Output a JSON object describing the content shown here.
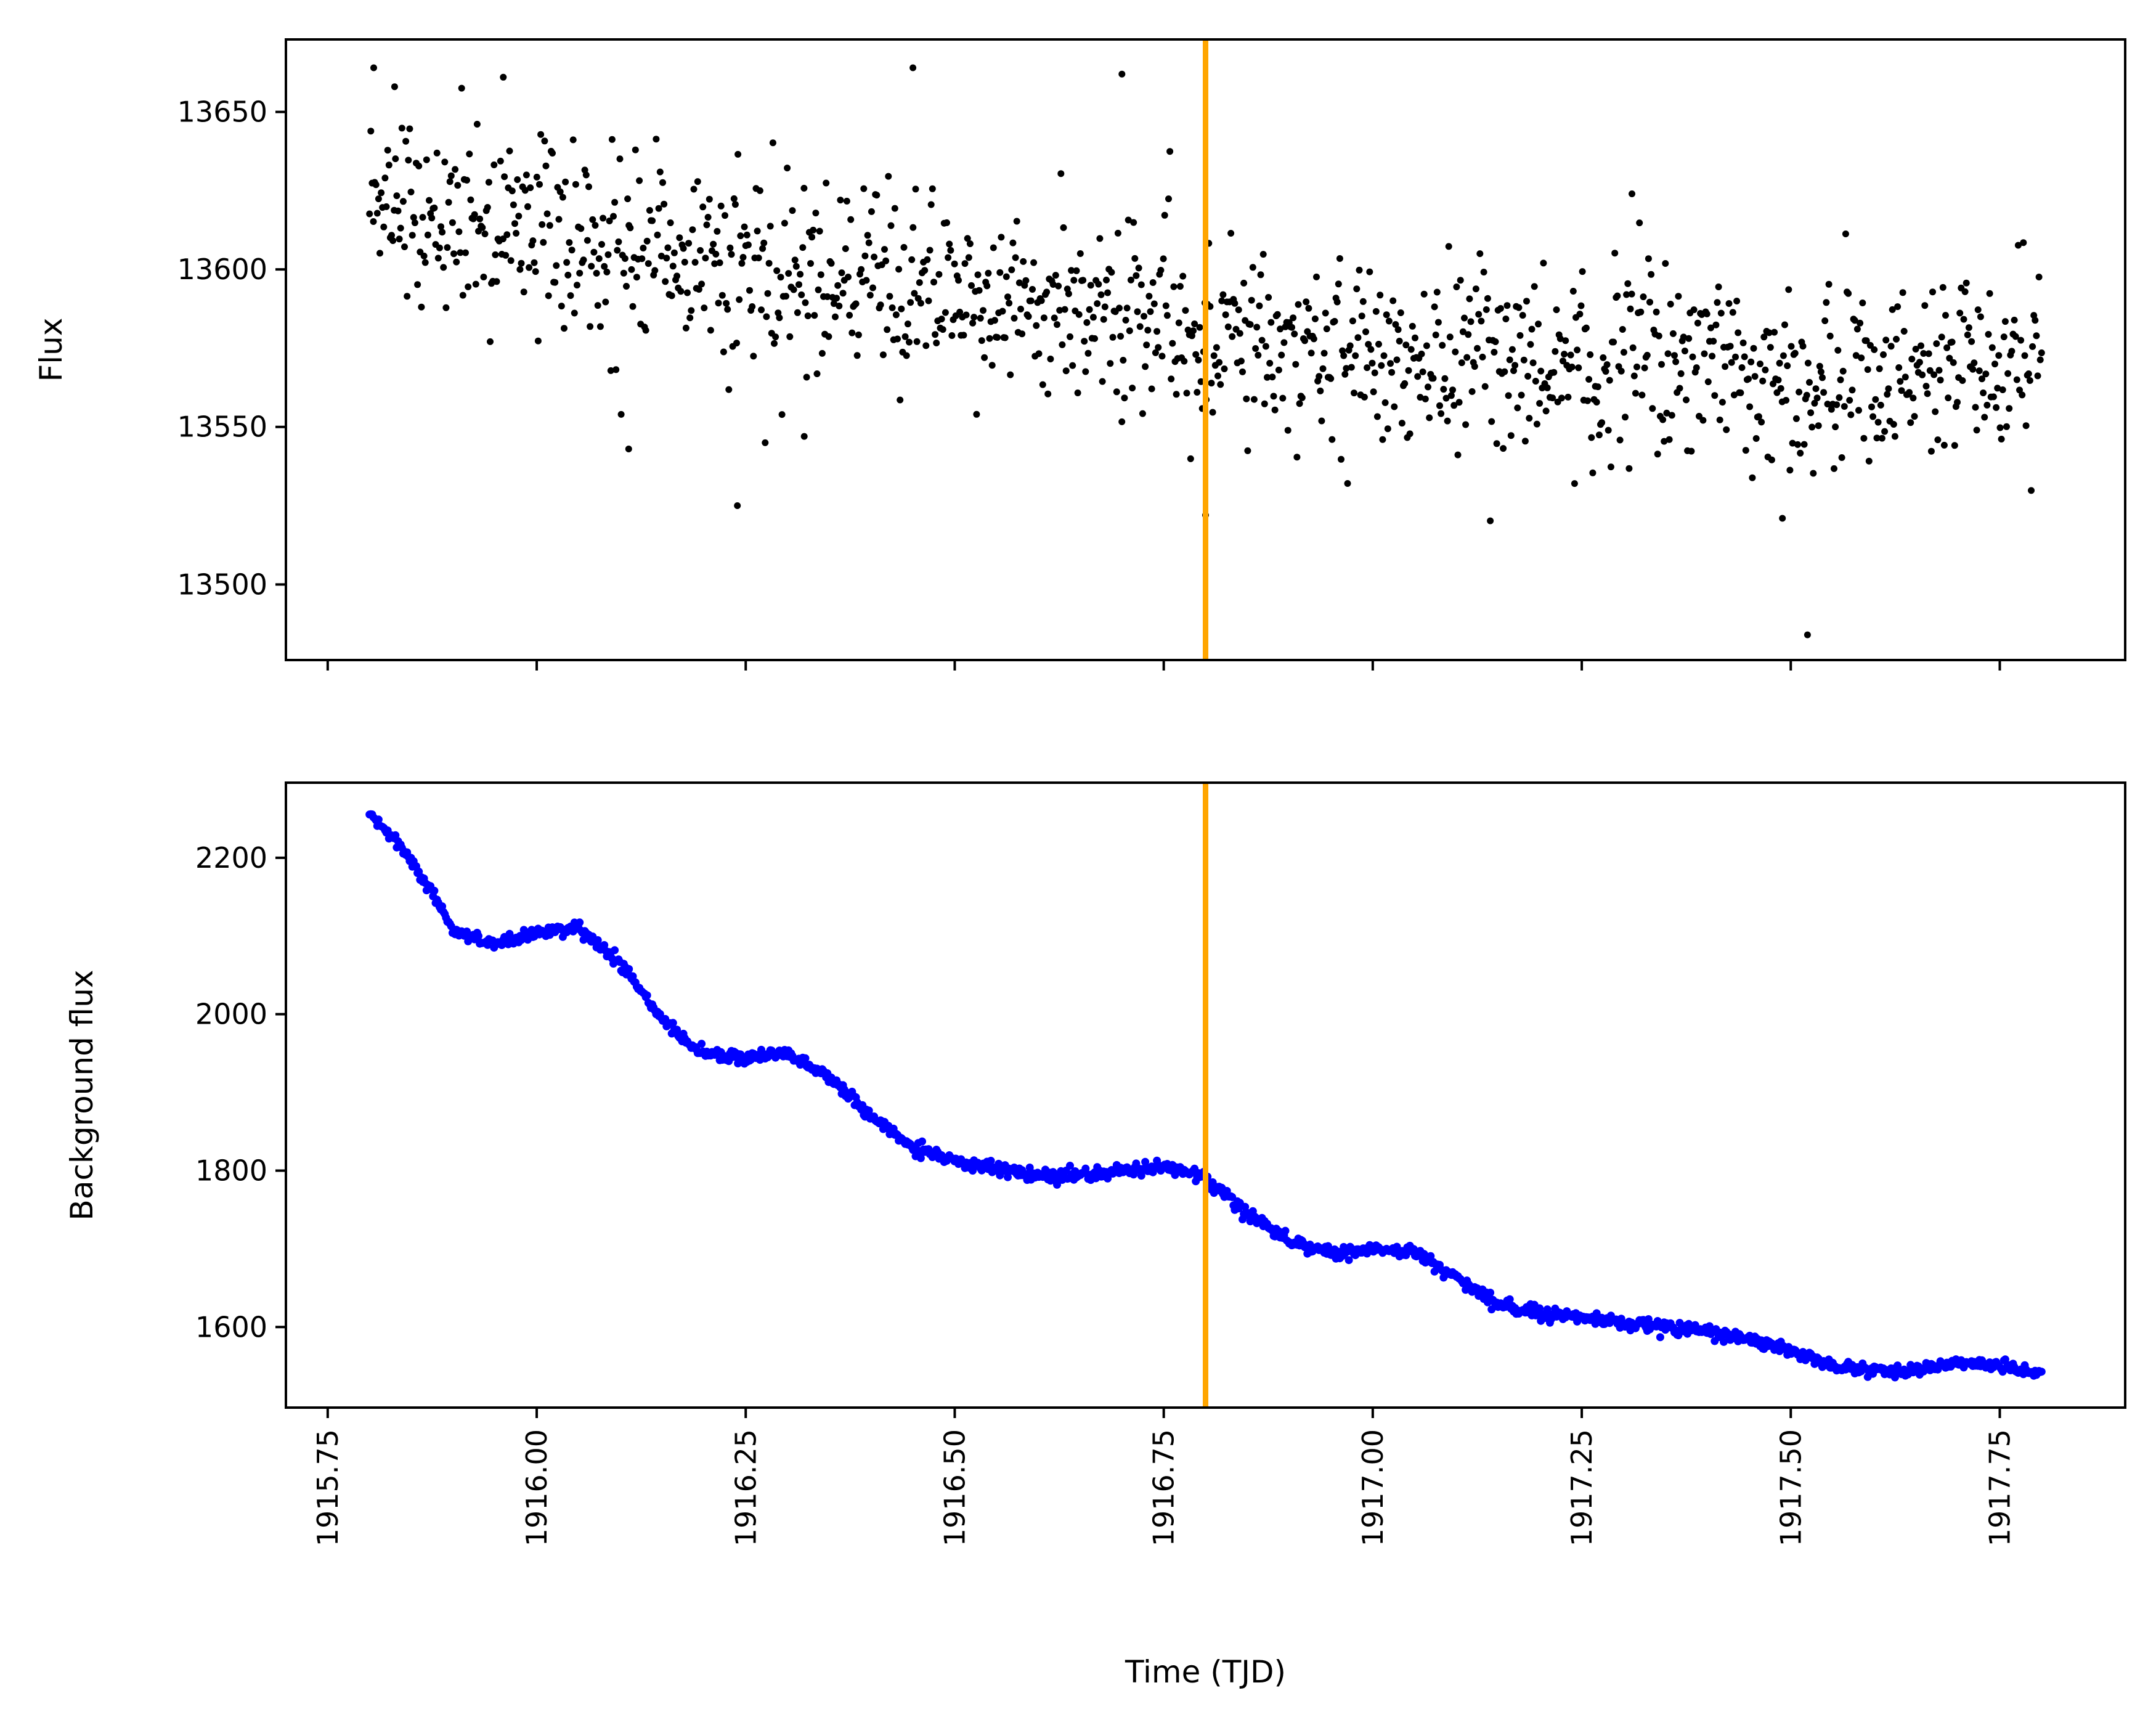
{
  "chart_data": [
    {
      "type": "scatter",
      "ylabel": "Flux",
      "xlabel": "",
      "xlim": [
        1915.7,
        1917.9
      ],
      "ylim": [
        13476,
        13673
      ],
      "yticks": [
        "13500",
        "13550",
        "13600",
        "13650"
      ],
      "xticks": [
        "1915.75",
        "1916.00",
        "1916.25",
        "1916.50",
        "1916.75",
        "1917.00",
        "1917.25",
        "1917.50",
        "1917.75"
      ],
      "show_x_tick_labels": false,
      "marker_color": "#000000",
      "event_line": {
        "x": 1916.8,
        "color": "#FFA500"
      },
      "trend": {
        "x": [
          1915.8,
          1915.9,
          1916.0,
          1916.1,
          1916.2,
          1916.3,
          1916.4,
          1916.5,
          1916.6,
          1916.7,
          1916.79,
          1916.81,
          1916.9,
          1917.0,
          1917.1,
          1917.2,
          1917.3,
          1917.4,
          1917.5,
          1917.6,
          1917.7,
          1917.8
        ],
        "y": [
          13625,
          13617,
          13611,
          13606,
          13602,
          13598,
          13595,
          13592,
          13590,
          13589,
          13588,
          13582,
          13576,
          13573,
          13571,
          13570,
          13572,
          13570,
          13563,
          13565,
          13567,
          13570
        ]
      },
      "scatter_sigma": 15,
      "n_points": 1290,
      "dip": {
        "x": 1916.79,
        "depth": 18,
        "width": 0.015
      },
      "outliers": [
        {
          "x": 1915.805,
          "y": 13664
        },
        {
          "x": 1915.83,
          "y": 13658
        },
        {
          "x": 1915.96,
          "y": 13661
        },
        {
          "x": 1916.45,
          "y": 13664
        },
        {
          "x": 1916.7,
          "y": 13662
        },
        {
          "x": 1916.24,
          "y": 13525
        },
        {
          "x": 1917.52,
          "y": 13484
        },
        {
          "x": 1917.49,
          "y": 13521
        },
        {
          "x": 1916.8,
          "y": 13522
        },
        {
          "x": 1916.11,
          "y": 13543
        },
        {
          "x": 1916.32,
          "y": 13547
        },
        {
          "x": 1917.31,
          "y": 13624
        }
      ]
    },
    {
      "type": "scatter",
      "ylabel": "Background flux",
      "xlabel": "Time (TJD)",
      "xlim": [
        1915.7,
        1917.9
      ],
      "ylim": [
        1497,
        2296
      ],
      "yticks": [
        "1600",
        "1800",
        "2000",
        "2200"
      ],
      "xticks": [
        "1915.75",
        "1916.00",
        "1916.25",
        "1916.50",
        "1916.75",
        "1917.00",
        "1917.25",
        "1917.50",
        "1917.75"
      ],
      "show_x_tick_labels": true,
      "marker_color": "#0000FF",
      "event_line": {
        "x": 1916.8,
        "color": "#FFA500"
      },
      "trend": {
        "x": [
          1915.8,
          1915.84,
          1915.88,
          1915.9,
          1915.95,
          1916.0,
          1916.05,
          1916.1,
          1916.15,
          1916.18,
          1916.2,
          1916.25,
          1916.3,
          1916.35,
          1916.4,
          1916.45,
          1916.5,
          1916.55,
          1916.6,
          1916.65,
          1916.7,
          1916.75,
          1916.8,
          1916.85,
          1916.9,
          1916.95,
          1917.0,
          1917.05,
          1917.1,
          1917.15,
          1917.2,
          1917.25,
          1917.3,
          1917.35,
          1917.4,
          1917.45,
          1917.5,
          1917.55,
          1917.6,
          1917.65,
          1917.7,
          1917.75,
          1917.8
        ],
        "y": [
          2258,
          2210,
          2145,
          2105,
          2090,
          2105,
          2110,
          2065,
          1995,
          1965,
          1948,
          1945,
          1950,
          1920,
          1870,
          1830,
          1813,
          1803,
          1793,
          1795,
          1800,
          1805,
          1790,
          1745,
          1710,
          1695,
          1700,
          1695,
          1665,
          1630,
          1615,
          1615,
          1605,
          1600,
          1595,
          1585,
          1570,
          1550,
          1545,
          1545,
          1555,
          1550,
          1540
        ]
      },
      "scatter_sigma": 4,
      "n_points": 1290
    }
  ]
}
